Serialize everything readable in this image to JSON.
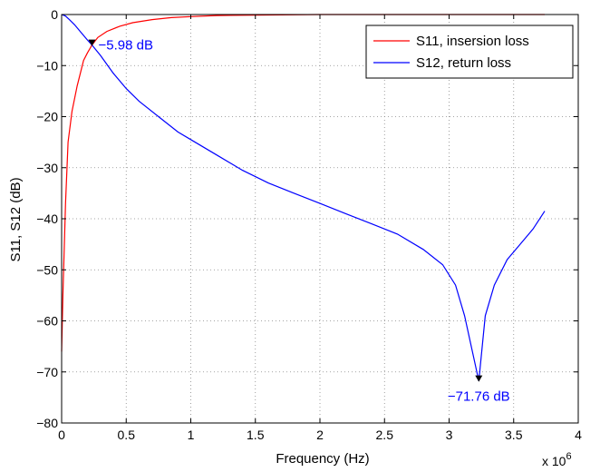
{
  "chart_data": {
    "type": "line",
    "title": "",
    "xlabel": "Frequency (Hz)",
    "ylabel": "S11, S12 (dB)",
    "x_multiplier_label": "x 10",
    "x_multiplier_exp": "6",
    "xlim": [
      0,
      4
    ],
    "ylim": [
      -80,
      0
    ],
    "x_ticks": [
      0,
      0.5,
      1,
      1.5,
      2,
      2.5,
      3,
      3.5,
      4
    ],
    "x_tick_labels": [
      "0",
      "0.5",
      "1",
      "1.5",
      "2",
      "2.5",
      "3",
      "3.5",
      "4"
    ],
    "y_ticks": [
      0,
      -10,
      -20,
      -30,
      -40,
      -50,
      -60,
      -70,
      -80
    ],
    "y_tick_labels": [
      "0",
      "−10",
      "−20",
      "−30",
      "−40",
      "−50",
      "−60",
      "−70",
      "−80"
    ],
    "grid": true,
    "legend_position": "top-right",
    "series": [
      {
        "name": "S11, insersion loss",
        "color": "#ff0000",
        "x": [
          0,
          0.01,
          0.03,
          0.05,
          0.08,
          0.12,
          0.17,
          0.2,
          0.235,
          0.28,
          0.35,
          0.45,
          0.55,
          0.7,
          0.85,
          1.0,
          1.2,
          1.5,
          2.0,
          2.5,
          3.0,
          3.5,
          3.74
        ],
        "y": [
          -66,
          -55,
          -37,
          -25,
          -19,
          -14,
          -9,
          -7.5,
          -5.98,
          -4.5,
          -3.3,
          -2.3,
          -1.6,
          -1.0,
          -0.6,
          -0.4,
          -0.2,
          -0.1,
          0,
          0,
          0,
          0,
          0
        ]
      },
      {
        "name": "S12, return loss",
        "color": "#0000ff",
        "x": [
          0,
          0.03,
          0.06,
          0.1,
          0.15,
          0.2,
          0.235,
          0.3,
          0.4,
          0.5,
          0.6,
          0.75,
          0.9,
          1.0,
          1.2,
          1.4,
          1.6,
          1.8,
          2.0,
          2.2,
          2.4,
          2.6,
          2.8,
          2.95,
          3.05,
          3.12,
          3.18,
          3.23,
          3.28,
          3.35,
          3.45,
          3.55,
          3.65,
          3.74
        ],
        "y": [
          0,
          -0.3,
          -1,
          -2,
          -3.5,
          -5,
          -5.98,
          -8,
          -11.5,
          -14.5,
          -17,
          -20,
          -23,
          -24.5,
          -27.5,
          -30.5,
          -33,
          -35,
          -37,
          -39,
          -41,
          -43,
          -46,
          -49,
          -53,
          -59,
          -66,
          -71.76,
          -59,
          -53,
          -48,
          -45,
          -42,
          -38.5
        ]
      }
    ],
    "annotations": [
      {
        "x": 0.235,
        "y": -5.98,
        "text": "−5.98 dB",
        "color": "#0000ff",
        "anchor": "right"
      },
      {
        "x": 3.23,
        "y": -71.76,
        "text": "−71.76 dB",
        "color": "#0000ff",
        "anchor": "below"
      }
    ]
  }
}
